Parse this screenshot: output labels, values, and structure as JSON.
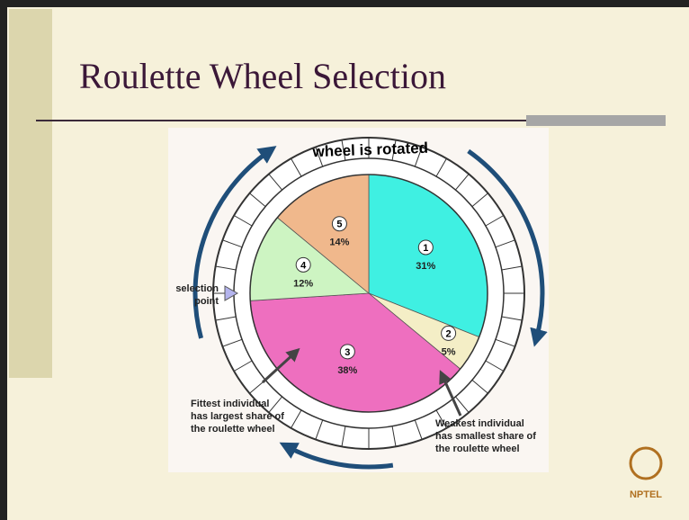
{
  "slide_title": "Roulette Wheel Selection",
  "logo": "NPTEL",
  "chart_data": {
    "type": "pie",
    "categories": [
      "1",
      "2",
      "3",
      "4",
      "5"
    ],
    "values": [
      31,
      5,
      38,
      12,
      14
    ],
    "value_labels": [
      "31%",
      "5%",
      "38%",
      "12%",
      "14%"
    ],
    "colors": [
      "#3ff0e2",
      "#f4eec6",
      "#ee6fbf",
      "#cdf4c2",
      "#f0b88c"
    ],
    "rotation_label": "wheel is rotated",
    "selection_label": [
      "selection",
      "point"
    ],
    "fittest_note": [
      "Fittest individual",
      "has largest share of",
      "the roulette wheel"
    ],
    "weakest_note": [
      "Weakest individual",
      "has smallest share of",
      "the roulette wheel"
    ]
  }
}
